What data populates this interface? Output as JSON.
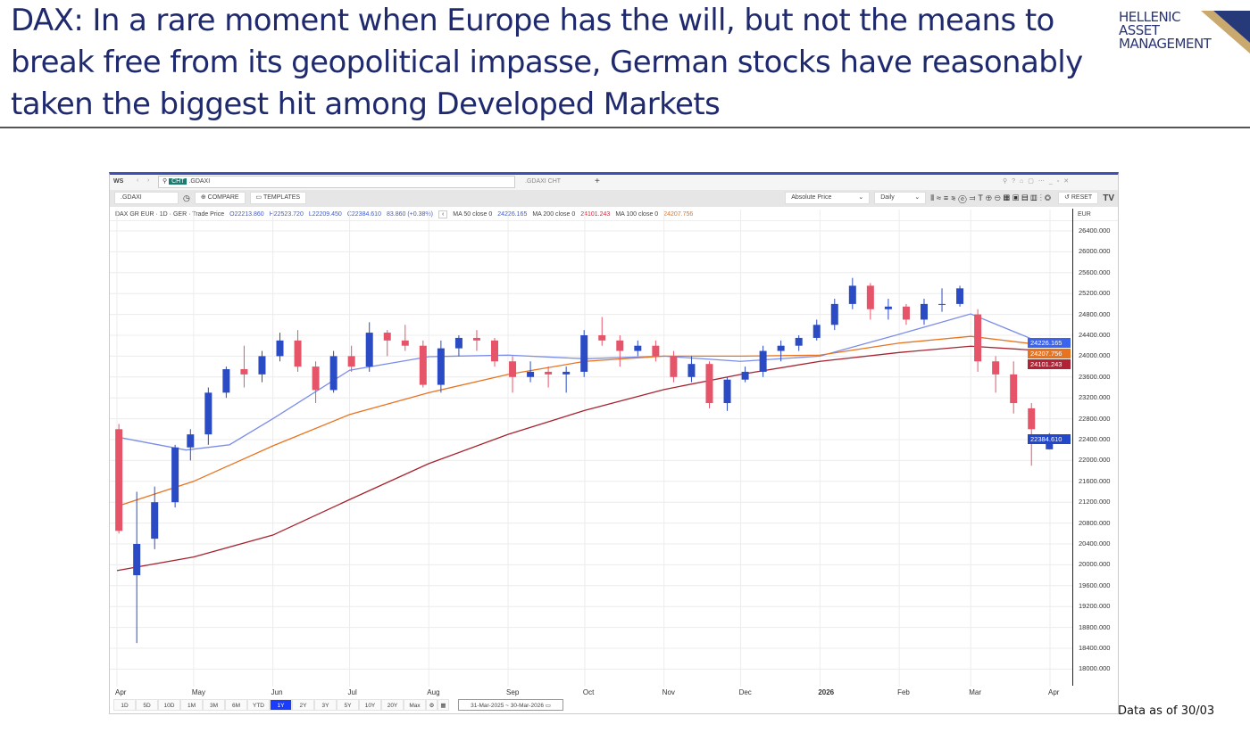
{
  "slide": {
    "title": "DAX: In a rare moment when Europe has the will, but not the means to break free from its geopolitical impasse, German stocks have reasonably taken the biggest hit among Developed Markets",
    "logo": "HELLENIC ASSET MANAGEMENT",
    "logo_lines": [
      "HELLENIC",
      "ASSET",
      "MANAGEMENT"
    ],
    "footnote": "Data as of 30/03"
  },
  "toolbar": {
    "ws": "WS",
    "tag": "CHT",
    "search": ".GDAXI",
    "tab": ".GDAXI CHT",
    "plus": "+",
    "ticker": ".GDAXI",
    "compare": "COMPARE",
    "templates": "TEMPLATES",
    "price_mode": "Absolute Price",
    "interval": "Daily",
    "reset": "RESET",
    "tv": "TV",
    "currency": "EUR"
  },
  "info": {
    "name": "DAX GR EUR · 1D · GER · Trade Price",
    "open": "O22213.860",
    "high": "H22523.720",
    "low": "L22209.450",
    "close": "C22384.610",
    "change": "83.860 (+0.38%)",
    "ma50_label": "MA 50 close 0",
    "ma50": "24226.165",
    "ma200_label": "MA 200 close 0",
    "ma200": "24101.243",
    "ma100_label": "MA 100 close 0",
    "ma100": "24207.756"
  },
  "range_buttons": [
    "1D",
    "5D",
    "10D",
    "1M",
    "3M",
    "6M",
    "YTD",
    "1Y",
    "2Y",
    "3Y",
    "5Y",
    "10Y",
    "20Y",
    "Max"
  ],
  "selected_range": "1Y",
  "date_range": "31-Mar-2025 ~ 30-Mar-2026",
  "colors": {
    "up": "#2b4bc4",
    "down": "#e65469",
    "ma50": "#7b8de8",
    "ma100": "#e8731f",
    "ma200": "#a5232f",
    "title": "#1f2a6e"
  },
  "chart_data": {
    "type": "candlestick",
    "title": "",
    "xlabel": "",
    "ylabel": "",
    "ylim": [
      17800,
      26600
    ],
    "y_ticks": [
      "26400.000",
      "26000.000",
      "25600.000",
      "25200.000",
      "24800.000",
      "24400.000",
      "24000.000",
      "23600.000",
      "23200.000",
      "22800.000",
      "22400.000",
      "22000.000",
      "21600.000",
      "21200.000",
      "20800.000",
      "20400.000",
      "20000.000",
      "19600.000",
      "19200.000",
      "18800.000",
      "18400.000",
      "18000.000"
    ],
    "x_ticks": [
      {
        "label": "Apr",
        "date": "2025-04-01"
      },
      {
        "label": "May",
        "date": "2025-05-01"
      },
      {
        "label": "Jun",
        "date": "2025-06-01"
      },
      {
        "label": "Jul",
        "date": "2025-07-01"
      },
      {
        "label": "Aug",
        "date": "2025-08-01"
      },
      {
        "label": "Sep",
        "date": "2025-09-01"
      },
      {
        "label": "Oct",
        "date": "2025-10-01"
      },
      {
        "label": "Nov",
        "date": "2025-11-01"
      },
      {
        "label": "Dec",
        "date": "2025-12-01"
      },
      {
        "label": "2026",
        "date": "2026-01-01"
      },
      {
        "label": "Feb",
        "date": "2026-02-01"
      },
      {
        "label": "Mar",
        "date": "2026-03-01"
      },
      {
        "label": "Apr",
        "date": "2026-04-01"
      }
    ],
    "grid": true,
    "candles": [
      [
        "2025-03-31",
        22600,
        22700,
        20600,
        20650
      ],
      [
        "2025-04-07",
        19800,
        21400,
        18500,
        20400
      ],
      [
        "2025-04-14",
        20500,
        21500,
        20300,
        21200
      ],
      [
        "2025-04-22",
        21200,
        22300,
        21100,
        22250
      ],
      [
        "2025-04-28",
        22250,
        22600,
        22000,
        22500
      ],
      [
        "2025-05-05",
        22500,
        23400,
        22300,
        23300
      ],
      [
        "2025-05-12",
        23300,
        23800,
        23200,
        23750
      ],
      [
        "2025-05-19",
        23750,
        24200,
        23400,
        23650
      ],
      [
        "2025-05-26",
        23650,
        24100,
        23500,
        24000
      ],
      [
        "2025-06-02",
        24000,
        24450,
        23900,
        24300
      ],
      [
        "2025-06-09",
        24300,
        24500,
        23700,
        23800
      ],
      [
        "2025-06-16",
        23800,
        23900,
        23100,
        23350
      ],
      [
        "2025-06-23",
        23350,
        24100,
        23300,
        24000
      ],
      [
        "2025-06-30",
        24000,
        24200,
        23700,
        23800
      ],
      [
        "2025-07-07",
        23800,
        24650,
        23700,
        24450
      ],
      [
        "2025-07-14",
        24450,
        24500,
        24000,
        24300
      ],
      [
        "2025-07-21",
        24300,
        24600,
        24100,
        24200
      ],
      [
        "2025-07-28",
        24200,
        24300,
        23400,
        23450
      ],
      [
        "2025-08-04",
        23450,
        24300,
        23300,
        24150
      ],
      [
        "2025-08-11",
        24150,
        24400,
        24000,
        24350
      ],
      [
        "2025-08-18",
        24350,
        24500,
        24100,
        24300
      ],
      [
        "2025-08-25",
        24300,
        24350,
        23800,
        23900
      ],
      [
        "2025-09-01",
        23900,
        24000,
        23300,
        23600
      ],
      [
        "2025-09-08",
        23600,
        23900,
        23500,
        23700
      ],
      [
        "2025-09-15",
        23700,
        23800,
        23400,
        23650
      ],
      [
        "2025-09-22",
        23650,
        23800,
        23300,
        23700
      ],
      [
        "2025-09-29",
        23700,
        24500,
        23600,
        24400
      ],
      [
        "2025-10-06",
        24400,
        24750,
        24200,
        24300
      ],
      [
        "2025-10-13",
        24300,
        24400,
        23800,
        24100
      ],
      [
        "2025-10-20",
        24100,
        24300,
        24000,
        24200
      ],
      [
        "2025-10-27",
        24200,
        24300,
        23900,
        24000
      ],
      [
        "2025-11-03",
        24000,
        24100,
        23500,
        23600
      ],
      [
        "2025-11-10",
        23600,
        24000,
        23500,
        23850
      ],
      [
        "2025-11-17",
        23850,
        23900,
        23000,
        23100
      ],
      [
        "2025-11-24",
        23100,
        23600,
        22950,
        23550
      ],
      [
        "2025-12-01",
        23550,
        23800,
        23500,
        23700
      ],
      [
        "2025-12-08",
        23700,
        24200,
        23600,
        24100
      ],
      [
        "2025-12-15",
        24100,
        24300,
        23900,
        24200
      ],
      [
        "2025-12-22",
        24200,
        24400,
        24100,
        24350
      ],
      [
        "2025-12-29",
        24350,
        24700,
        24300,
        24600
      ],
      [
        "2026-01-05",
        24600,
        25100,
        24500,
        25000
      ],
      [
        "2026-01-12",
        25000,
        25500,
        24900,
        25350
      ],
      [
        "2026-01-19",
        25350,
        25400,
        24700,
        24900
      ],
      [
        "2026-01-26",
        24900,
        25100,
        24700,
        24950
      ],
      [
        "2026-02-02",
        24950,
        25000,
        24600,
        24700
      ],
      [
        "2026-02-09",
        24700,
        25100,
        24600,
        25000
      ],
      [
        "2026-02-16",
        25000,
        25300,
        24850,
        25000
      ],
      [
        "2026-02-23",
        25000,
        25350,
        24950,
        25300
      ],
      [
        "2026-03-02",
        24800,
        24900,
        23700,
        23900
      ],
      [
        "2026-03-09",
        23900,
        24000,
        23300,
        23650
      ],
      [
        "2026-03-16",
        23650,
        23900,
        22900,
        23100
      ],
      [
        "2026-03-23",
        23000,
        23100,
        21900,
        22600
      ],
      [
        "2026-03-30",
        22213.86,
        22523.72,
        22209.45,
        22384.61
      ]
    ],
    "candle_fields": [
      "date",
      "open",
      "high",
      "low",
      "close"
    ],
    "series": [
      {
        "name": "MA 50 close 0",
        "dates": [
          "2025-04-01",
          "2025-04-28",
          "2025-05-15",
          "2025-06-01",
          "2025-07-01",
          "2025-08-01",
          "2025-09-01",
          "2025-10-01",
          "2025-11-01",
          "2025-12-01",
          "2026-01-01",
          "2026-02-01",
          "2026-03-01",
          "2026-03-30"
        ],
        "values": [
          22450,
          22200,
          22300,
          22800,
          23730,
          23990,
          24020,
          23950,
          24000,
          23900,
          24000,
          24420,
          24810,
          24226.165
        ]
      },
      {
        "name": "MA 100 close 0",
        "dates": [
          "2025-04-01",
          "2025-05-01",
          "2025-06-01",
          "2025-07-01",
          "2025-08-01",
          "2025-09-01",
          "2025-10-01",
          "2025-11-01",
          "2025-12-01",
          "2026-01-01",
          "2026-02-01",
          "2026-03-01",
          "2026-03-30"
        ],
        "values": [
          21120,
          21600,
          22280,
          22880,
          23300,
          23650,
          23900,
          24000,
          24000,
          24020,
          24250,
          24380,
          24207.756
        ]
      },
      {
        "name": "MA 200 close 0",
        "dates": [
          "2025-04-01",
          "2025-05-01",
          "2025-06-01",
          "2025-07-01",
          "2025-08-01",
          "2025-09-01",
          "2025-10-01",
          "2025-11-01",
          "2025-12-01",
          "2026-01-01",
          "2026-02-01",
          "2026-03-01",
          "2026-03-30"
        ],
        "values": [
          19890,
          20150,
          20570,
          21250,
          21940,
          22500,
          22960,
          23360,
          23650,
          23900,
          24070,
          24190,
          24101.243
        ]
      }
    ],
    "last_price": "22384.610"
  }
}
